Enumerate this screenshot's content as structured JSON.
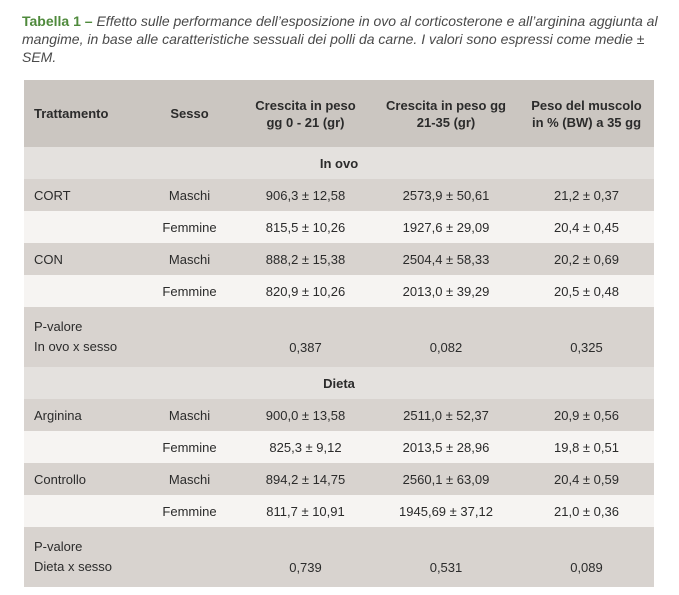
{
  "caption": {
    "label": "Tabella 1",
    "separator": "–",
    "text": "Effetto sulle performance dell’esposizione in ovo al corticosterone e all’arginina aggiunta al mangime, in base alle caratteristiche sessuali dei polli da carne. I valori sono espressi come medie ± SEM."
  },
  "headers": {
    "trattamento": "Trattamento",
    "sesso": "Sesso",
    "crescita1": "Crescita in peso gg 0 - 21 (gr)",
    "crescita2": "Crescita in peso gg 21-35 (gr)",
    "peso": "Peso del muscolo in % (BW) a 35 gg"
  },
  "sections": [
    {
      "title": "In ovo",
      "rows": [
        {
          "treatment": "CORT",
          "sex": "Maschi",
          "c1": "906,3 ± 12,58",
          "c2": "2573,9 ± 50,61",
          "p": "21,2 ± 0,37"
        },
        {
          "treatment": "",
          "sex": "Femmine",
          "c1": "815,5 ± 10,26",
          "c2": "1927,6 ± 29,09",
          "p": "20,4 ± 0,45"
        },
        {
          "treatment": "CON",
          "sex": "Maschi",
          "c1": "888,2 ± 15,38",
          "c2": "2504,4 ± 58,33",
          "p": "20,2 ± 0,69"
        },
        {
          "treatment": "",
          "sex": "Femmine",
          "c1": "820,9 ± 10,26",
          "c2": "2013,0 ± 39,29",
          "p": "20,5 ± 0,48"
        }
      ],
      "pvalue": {
        "label1": "P-valore",
        "label2": "In ovo x sesso",
        "c1": "0,387",
        "c2": "0,082",
        "p": "0,325"
      }
    },
    {
      "title": "Dieta",
      "rows": [
        {
          "treatment": "Arginina",
          "sex": "Maschi",
          "c1": "900,0 ± 13,58",
          "c2": "2511,0 ± 52,37",
          "p": "20,9 ± 0,56"
        },
        {
          "treatment": "",
          "sex": "Femmine",
          "c1": "825,3 ± 9,12",
          "c2": "2013,5 ± 28,96",
          "p": "19,8 ± 0,51"
        },
        {
          "treatment": "Controllo",
          "sex": "Maschi",
          "c1": "894,2 ± 14,75",
          "c2": "2560,1 ± 63,09",
          "p": "20,4 ± 0,59"
        },
        {
          "treatment": "",
          "sex": "Femmine",
          "c1": "811,7 ± 10,91",
          "c2": "1945,69 ± 37,12",
          "p": "21,0 ± 0,36"
        }
      ],
      "pvalue": {
        "label1": "P-valore",
        "label2": "Dieta x sesso",
        "c1": "0,739",
        "c2": "0,531",
        "p": "0,089"
      }
    }
  ]
}
